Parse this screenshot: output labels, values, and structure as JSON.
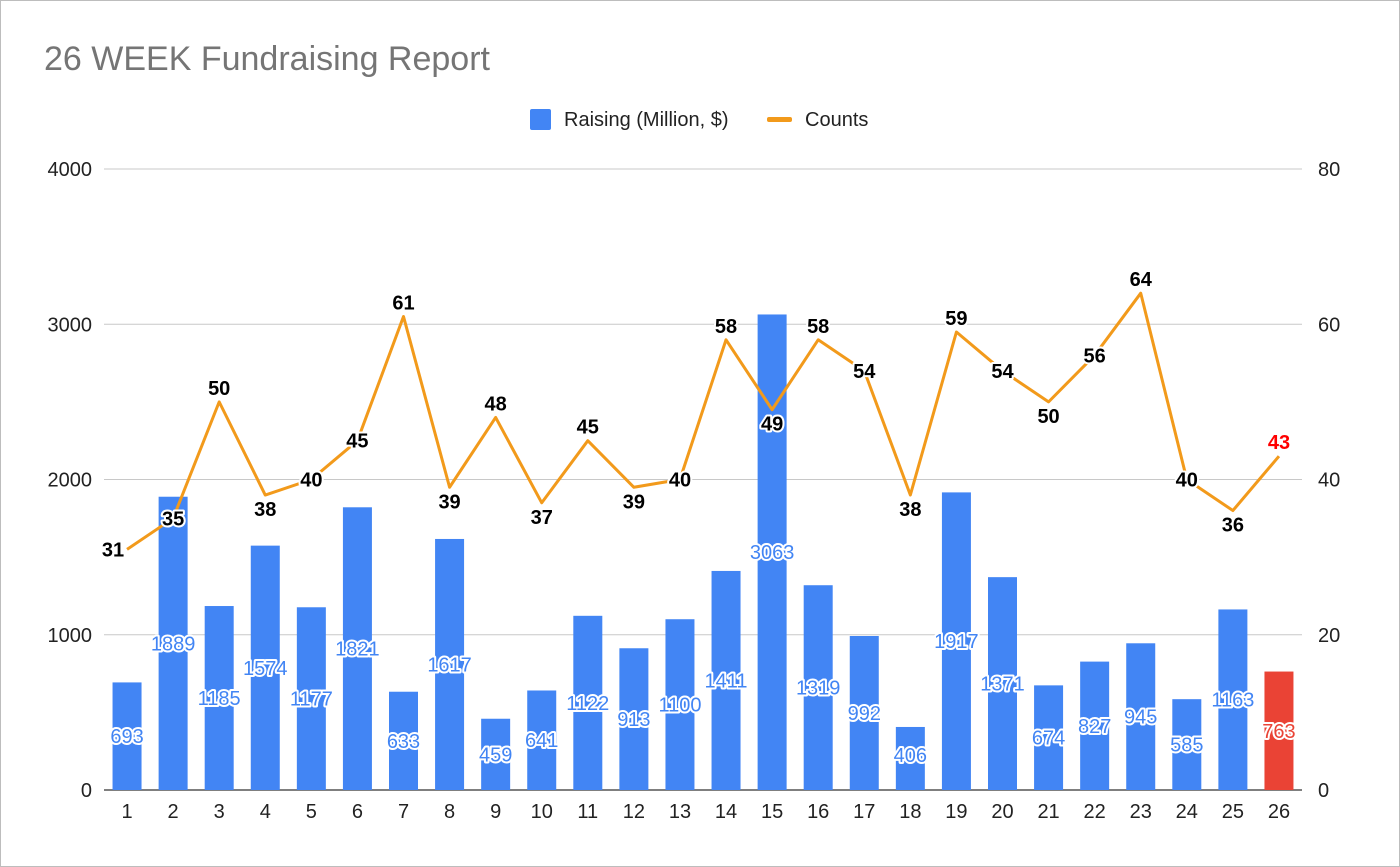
{
  "chart_data": {
    "type": "bar",
    "title": "26 WEEK Fundraising Report",
    "legend_position": "top-center",
    "grid": true,
    "categories": [
      "1",
      "2",
      "3",
      "4",
      "5",
      "6",
      "7",
      "8",
      "9",
      "10",
      "11",
      "12",
      "13",
      "14",
      "15",
      "16",
      "17",
      "18",
      "19",
      "20",
      "21",
      "22",
      "23",
      "24",
      "25",
      "26"
    ],
    "y_left": {
      "min": 0,
      "max": 4000,
      "ticks": [
        "0",
        "1000",
        "2000",
        "3000",
        "4000"
      ]
    },
    "y_right": {
      "min": 0,
      "max": 80,
      "ticks": [
        "0",
        "20",
        "40",
        "60",
        "80"
      ]
    },
    "series": [
      {
        "name": "Raising (Million, $)",
        "type": "bar",
        "axis": "left",
        "color": "#4285f4",
        "highlight_color": "#ea4335",
        "highlight_index": 25,
        "values": [
          693,
          1889,
          1185,
          1574,
          1177,
          1821,
          633,
          1617,
          459,
          641,
          1122,
          913,
          1100,
          1411,
          3063,
          1319,
          992,
          406,
          1917,
          1371,
          674,
          827,
          945,
          585,
          1163,
          763
        ]
      },
      {
        "name": "Counts",
        "type": "line",
        "axis": "right",
        "color": "#f29a1b",
        "label_color": "#000000",
        "highlight_label_color": "#ff0000",
        "highlight_index": 25,
        "values": [
          31,
          35,
          50,
          38,
          40,
          45,
          61,
          39,
          48,
          37,
          45,
          39,
          40,
          58,
          49,
          58,
          54,
          38,
          59,
          54,
          50,
          56,
          64,
          40,
          36,
          43
        ]
      }
    ]
  }
}
